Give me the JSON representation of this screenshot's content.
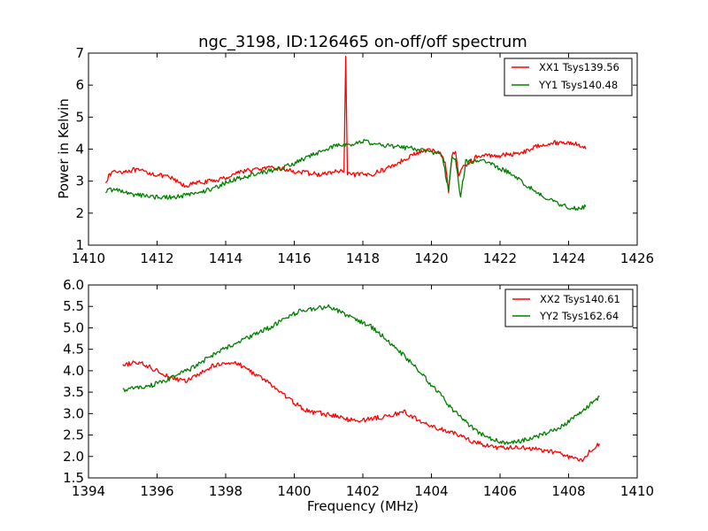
{
  "chart_data": [
    {
      "type": "line",
      "title": "ngc_3198, ID:126465 on-off/off spectrum",
      "xlabel": "",
      "ylabel": "Power in Kelvin",
      "xlim": [
        1410,
        1426
      ],
      "ylim": [
        1,
        7
      ],
      "xticks": [
        "1410",
        "1412",
        "1414",
        "1416",
        "1418",
        "1420",
        "1422",
        "1424",
        "1426"
      ],
      "yticks": [
        "1",
        "2",
        "3",
        "4",
        "5",
        "6",
        "7"
      ],
      "grid": false,
      "legend_position": "top-right",
      "series": [
        {
          "name": "XX1 Tsys139.56",
          "color": "#ff0000",
          "points": [
            [
              1410.5,
              3.0
            ],
            [
              1410.7,
              3.3
            ],
            [
              1411.0,
              3.3
            ],
            [
              1411.3,
              3.35
            ],
            [
              1411.6,
              3.3
            ],
            [
              1412.0,
              3.2
            ],
            [
              1412.4,
              3.1
            ],
            [
              1412.8,
              2.85
            ],
            [
              1413.2,
              2.95
            ],
            [
              1413.6,
              3.0
            ],
            [
              1414.0,
              3.1
            ],
            [
              1414.4,
              3.3
            ],
            [
              1414.8,
              3.35
            ],
            [
              1415.2,
              3.4
            ],
            [
              1415.6,
              3.4
            ],
            [
              1416.0,
              3.3
            ],
            [
              1416.4,
              3.25
            ],
            [
              1416.8,
              3.2
            ],
            [
              1417.2,
              3.3
            ],
            [
              1417.45,
              3.3
            ],
            [
              1417.5,
              6.9
            ],
            [
              1417.55,
              3.2
            ],
            [
              1417.8,
              3.2
            ],
            [
              1418.2,
              3.2
            ],
            [
              1418.6,
              3.35
            ],
            [
              1419.0,
              3.55
            ],
            [
              1419.4,
              3.8
            ],
            [
              1419.8,
              3.95
            ],
            [
              1420.2,
              3.95
            ],
            [
              1420.4,
              3.6
            ],
            [
              1420.5,
              2.7
            ],
            [
              1420.6,
              3.8
            ],
            [
              1420.7,
              3.9
            ],
            [
              1420.8,
              3.2
            ],
            [
              1420.9,
              3.4
            ],
            [
              1421.0,
              3.5
            ],
            [
              1421.3,
              3.75
            ],
            [
              1421.6,
              3.8
            ],
            [
              1422.0,
              3.8
            ],
            [
              1422.4,
              3.85
            ],
            [
              1422.8,
              3.95
            ],
            [
              1423.2,
              4.15
            ],
            [
              1423.6,
              4.2
            ],
            [
              1424.0,
              4.2
            ],
            [
              1424.3,
              4.15
            ],
            [
              1424.5,
              4.0
            ]
          ]
        },
        {
          "name": "YY1 Tsys140.48",
          "color": "#008000",
          "points": [
            [
              1410.5,
              2.7
            ],
            [
              1410.8,
              2.75
            ],
            [
              1411.2,
              2.6
            ],
            [
              1411.6,
              2.55
            ],
            [
              1412.0,
              2.5
            ],
            [
              1412.4,
              2.5
            ],
            [
              1412.8,
              2.55
            ],
            [
              1413.2,
              2.65
            ],
            [
              1413.6,
              2.75
            ],
            [
              1414.0,
              2.95
            ],
            [
              1414.4,
              3.1
            ],
            [
              1414.8,
              3.2
            ],
            [
              1415.2,
              3.3
            ],
            [
              1415.6,
              3.4
            ],
            [
              1416.0,
              3.55
            ],
            [
              1416.4,
              3.75
            ],
            [
              1416.8,
              3.95
            ],
            [
              1417.2,
              4.1
            ],
            [
              1417.6,
              4.15
            ],
            [
              1418.0,
              4.25
            ],
            [
              1418.4,
              4.15
            ],
            [
              1418.8,
              4.1
            ],
            [
              1419.2,
              4.05
            ],
            [
              1419.6,
              4.0
            ],
            [
              1420.0,
              3.9
            ],
            [
              1420.3,
              3.85
            ],
            [
              1420.5,
              2.7
            ],
            [
              1420.6,
              3.8
            ],
            [
              1420.7,
              3.7
            ],
            [
              1420.85,
              2.5
            ],
            [
              1421.0,
              3.6
            ],
            [
              1421.4,
              3.65
            ],
            [
              1421.8,
              3.5
            ],
            [
              1422.2,
              3.3
            ],
            [
              1422.6,
              3.0
            ],
            [
              1423.0,
              2.7
            ],
            [
              1423.4,
              2.45
            ],
            [
              1423.8,
              2.25
            ],
            [
              1424.2,
              2.15
            ],
            [
              1424.5,
              2.2
            ]
          ]
        }
      ]
    },
    {
      "type": "line",
      "title": "",
      "xlabel": "Frequency (MHz)",
      "ylabel": "",
      "xlim": [
        1394,
        1410
      ],
      "ylim": [
        1.5,
        6.0
      ],
      "xticks": [
        "1394",
        "1396",
        "1398",
        "1400",
        "1402",
        "1404",
        "1406",
        "1408",
        "1410"
      ],
      "yticks": [
        "1.5",
        "2.0",
        "2.5",
        "3.0",
        "3.5",
        "4.0",
        "4.5",
        "5.0",
        "5.5",
        "6.0"
      ],
      "grid": false,
      "legend_position": "top-right",
      "series": [
        {
          "name": "XX2 Tsys140.61",
          "color": "#ff0000",
          "points": [
            [
              1395.0,
              4.1
            ],
            [
              1395.3,
              4.2
            ],
            [
              1395.6,
              4.15
            ],
            [
              1396.0,
              4.0
            ],
            [
              1396.4,
              3.85
            ],
            [
              1396.8,
              3.75
            ],
            [
              1397.2,
              3.9
            ],
            [
              1397.6,
              4.1
            ],
            [
              1398.0,
              4.2
            ],
            [
              1398.4,
              4.15
            ],
            [
              1398.8,
              3.95
            ],
            [
              1399.2,
              3.75
            ],
            [
              1399.6,
              3.5
            ],
            [
              1400.0,
              3.25
            ],
            [
              1400.4,
              3.05
            ],
            [
              1400.8,
              3.0
            ],
            [
              1401.2,
              2.95
            ],
            [
              1401.6,
              2.85
            ],
            [
              1402.0,
              2.85
            ],
            [
              1402.4,
              2.9
            ],
            [
              1402.8,
              2.95
            ],
            [
              1403.2,
              3.05
            ],
            [
              1403.6,
              2.85
            ],
            [
              1404.0,
              2.7
            ],
            [
              1404.4,
              2.6
            ],
            [
              1404.8,
              2.5
            ],
            [
              1405.2,
              2.35
            ],
            [
              1405.6,
              2.25
            ],
            [
              1406.0,
              2.2
            ],
            [
              1406.4,
              2.2
            ],
            [
              1406.8,
              2.2
            ],
            [
              1407.2,
              2.15
            ],
            [
              1407.6,
              2.1
            ],
            [
              1408.0,
              2.0
            ],
            [
              1408.4,
              1.9
            ],
            [
              1408.6,
              2.1
            ],
            [
              1408.9,
              2.3
            ]
          ]
        },
        {
          "name": "YY2 Tsys162.64",
          "color": "#008000",
          "points": [
            [
              1395.0,
              3.55
            ],
            [
              1395.4,
              3.6
            ],
            [
              1395.8,
              3.65
            ],
            [
              1396.2,
              3.75
            ],
            [
              1396.6,
              3.9
            ],
            [
              1397.0,
              4.05
            ],
            [
              1397.4,
              4.25
            ],
            [
              1397.8,
              4.45
            ],
            [
              1398.2,
              4.6
            ],
            [
              1398.6,
              4.75
            ],
            [
              1399.0,
              4.9
            ],
            [
              1399.4,
              5.05
            ],
            [
              1399.8,
              5.25
            ],
            [
              1400.2,
              5.4
            ],
            [
              1400.6,
              5.45
            ],
            [
              1401.0,
              5.5
            ],
            [
              1401.4,
              5.35
            ],
            [
              1401.8,
              5.2
            ],
            [
              1402.2,
              5.05
            ],
            [
              1402.6,
              4.8
            ],
            [
              1403.0,
              4.5
            ],
            [
              1403.4,
              4.2
            ],
            [
              1403.8,
              3.85
            ],
            [
              1404.2,
              3.5
            ],
            [
              1404.6,
              3.1
            ],
            [
              1405.0,
              2.8
            ],
            [
              1405.4,
              2.55
            ],
            [
              1405.8,
              2.4
            ],
            [
              1406.2,
              2.3
            ],
            [
              1406.6,
              2.35
            ],
            [
              1407.0,
              2.45
            ],
            [
              1407.4,
              2.55
            ],
            [
              1407.8,
              2.7
            ],
            [
              1408.2,
              2.95
            ],
            [
              1408.6,
              3.2
            ],
            [
              1408.9,
              3.4
            ]
          ]
        }
      ]
    }
  ]
}
